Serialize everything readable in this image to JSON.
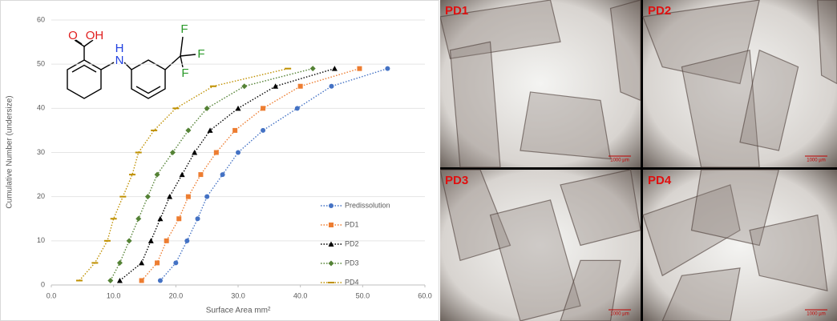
{
  "chart_data": {
    "type": "scatter",
    "x_label": "Surface Area mm²",
    "y_label": "Cumulative Number (undersize)",
    "xlim": [
      0,
      60
    ],
    "ylim": [
      0,
      60
    ],
    "xticks": [
      {
        "value": 0,
        "label": "0.0"
      },
      {
        "value": 10,
        "label": "10.0"
      },
      {
        "value": 20,
        "label": "20.0"
      },
      {
        "value": 30,
        "label": "30.0"
      },
      {
        "value": 40,
        "label": "40.0"
      },
      {
        "value": 50,
        "label": "50.0"
      },
      {
        "value": 60,
        "label": "60.0"
      }
    ],
    "yticks": [
      0,
      10,
      20,
      30,
      40,
      50,
      60
    ],
    "legend": "bottom-right",
    "series": [
      {
        "name": "Predissolution",
        "color": "#4472c4",
        "marker": "circle",
        "x": [
          17.5,
          20,
          21.8,
          23.5,
          25,
          27.5,
          30,
          34,
          39.5,
          45,
          54
        ],
        "values": [
          1,
          5,
          10,
          15,
          20,
          25,
          30,
          35,
          40,
          45,
          49
        ]
      },
      {
        "name": "PD1",
        "color": "#ed7d31",
        "marker": "square",
        "x": [
          14.5,
          17,
          18.5,
          20.5,
          22,
          24,
          26.5,
          29.5,
          34,
          40,
          49.5
        ],
        "values": [
          1,
          5,
          10,
          15,
          20,
          25,
          30,
          35,
          40,
          45,
          49
        ]
      },
      {
        "name": "PD2",
        "color": "#000000",
        "marker": "triangle",
        "x": [
          11,
          14.5,
          16,
          17.5,
          19,
          21,
          23,
          25.5,
          30,
          36,
          45.5
        ],
        "values": [
          1,
          5,
          10,
          15,
          20,
          25,
          30,
          35,
          40,
          45,
          49
        ]
      },
      {
        "name": "PD3",
        "color": "#548235",
        "marker": "diamond",
        "x": [
          9.5,
          11,
          12.5,
          14,
          15.5,
          17,
          19.5,
          22,
          25,
          31,
          42
        ],
        "values": [
          1,
          5,
          10,
          15,
          20,
          25,
          30,
          35,
          40,
          45,
          49
        ]
      },
      {
        "name": "PD4",
        "color": "#bf9000",
        "marker": "dash",
        "x": [
          4.5,
          7,
          9,
          10,
          11.5,
          13,
          14,
          16.5,
          20,
          26,
          38
        ],
        "values": [
          1,
          5,
          10,
          15,
          20,
          25,
          30,
          35,
          40,
          45,
          49
        ]
      }
    ],
    "structure_labels": [
      "O",
      "OH",
      "H",
      "N",
      "F",
      "F",
      "F"
    ]
  },
  "panels": [
    {
      "label": "PD1",
      "scale": "1000 µm"
    },
    {
      "label": "PD2",
      "scale": "1000 µm"
    },
    {
      "label": "PD3",
      "scale": "1000 µm"
    },
    {
      "label": "PD4",
      "scale": "1000 µm"
    }
  ]
}
